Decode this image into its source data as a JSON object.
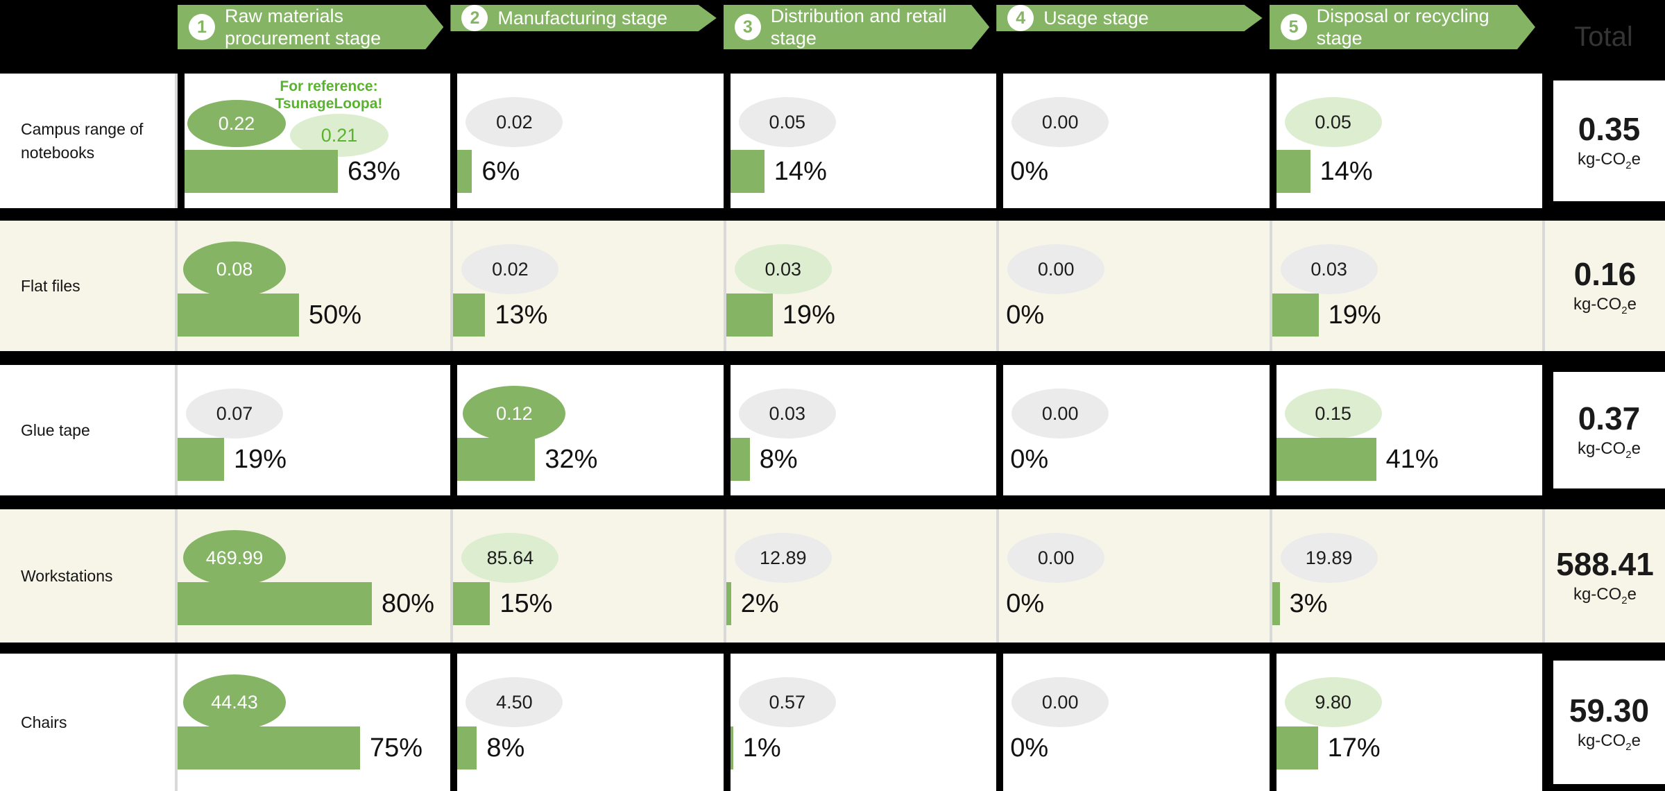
{
  "colors": {
    "green": "#84b464",
    "light_green": "#ddedd0",
    "gray_badge": "#ebebeb",
    "cream_row": "#f7f5e8",
    "annotation_green": "#5ab32e",
    "background": "#000000"
  },
  "header": {
    "total_label": "Total",
    "stages": [
      {
        "number": "1",
        "label": "Raw materials procurement stage"
      },
      {
        "number": "2",
        "label": "Manufacturing stage"
      },
      {
        "number": "3",
        "label": "Distribution and retail stage"
      },
      {
        "number": "4",
        "label": "Usage stage"
      },
      {
        "number": "5",
        "label": "Disposal or recycling stage"
      }
    ]
  },
  "unit": {
    "prefix": "kg-CO",
    "sub": "2",
    "suffix": "e"
  },
  "rows": [
    {
      "product": "Campus range of notebooks",
      "background": "white",
      "total": "0.35",
      "annotation": {
        "line1": "For reference:",
        "line2": "TsunageLoopa!",
        "value": "0.21"
      },
      "stages": [
        {
          "value": "0.22",
          "pct": 63,
          "pct_label": "63%",
          "badge": "dark-green"
        },
        {
          "value": "0.02",
          "pct": 6,
          "pct_label": "6%",
          "badge": "gray"
        },
        {
          "value": "0.05",
          "pct": 14,
          "pct_label": "14%",
          "badge": "gray"
        },
        {
          "value": "0.00",
          "pct": 0,
          "pct_label": "0%",
          "badge": "gray"
        },
        {
          "value": "0.05",
          "pct": 14,
          "pct_label": "14%",
          "badge": "light-green"
        }
      ]
    },
    {
      "product": "Flat files",
      "background": "cream",
      "total": "0.16",
      "stages": [
        {
          "value": "0.08",
          "pct": 50,
          "pct_label": "50%",
          "badge": "dark-green"
        },
        {
          "value": "0.02",
          "pct": 13,
          "pct_label": "13%",
          "badge": "gray"
        },
        {
          "value": "0.03",
          "pct": 19,
          "pct_label": "19%",
          "badge": "light-green"
        },
        {
          "value": "0.00",
          "pct": 0,
          "pct_label": "0%",
          "badge": "gray"
        },
        {
          "value": "0.03",
          "pct": 19,
          "pct_label": "19%",
          "badge": "gray"
        }
      ]
    },
    {
      "product": "Glue tape",
      "background": "white",
      "total": "0.37",
      "stages": [
        {
          "value": "0.07",
          "pct": 19,
          "pct_label": "19%",
          "badge": "gray"
        },
        {
          "value": "0.12",
          "pct": 32,
          "pct_label": "32%",
          "badge": "dark-green"
        },
        {
          "value": "0.03",
          "pct": 8,
          "pct_label": "8%",
          "badge": "gray"
        },
        {
          "value": "0.00",
          "pct": 0,
          "pct_label": "0%",
          "badge": "gray"
        },
        {
          "value": "0.15",
          "pct": 41,
          "pct_label": "41%",
          "badge": "light-green"
        }
      ]
    },
    {
      "product": "Workstations",
      "background": "cream",
      "total": "588.41",
      "stages": [
        {
          "value": "469.99",
          "pct": 80,
          "pct_label": "80%",
          "badge": "dark-green"
        },
        {
          "value": "85.64",
          "pct": 15,
          "pct_label": "15%",
          "badge": "light-green"
        },
        {
          "value": "12.89",
          "pct": 2,
          "pct_label": "2%",
          "badge": "gray"
        },
        {
          "value": "0.00",
          "pct": 0,
          "pct_label": "0%",
          "badge": "gray"
        },
        {
          "value": "19.89",
          "pct": 3,
          "pct_label": "3%",
          "badge": "gray"
        }
      ]
    },
    {
      "product": "Chairs",
      "background": "white",
      "total": "59.30",
      "stages": [
        {
          "value": "44.43",
          "pct": 75,
          "pct_label": "75%",
          "badge": "dark-green"
        },
        {
          "value": "4.50",
          "pct": 8,
          "pct_label": "8%",
          "badge": "gray"
        },
        {
          "value": "0.57",
          "pct": 1,
          "pct_label": "1%",
          "badge": "gray"
        },
        {
          "value": "0.00",
          "pct": 0,
          "pct_label": "0%",
          "badge": "gray"
        },
        {
          "value": "9.80",
          "pct": 17,
          "pct_label": "17%",
          "badge": "light-green"
        }
      ]
    }
  ],
  "chart_data": {
    "type": "table",
    "title": "Product lifecycle CO2 emissions by stage",
    "unit": "kg-CO2e",
    "categories": [
      "Raw materials procurement stage",
      "Manufacturing stage",
      "Distribution and retail stage",
      "Usage stage",
      "Disposal or recycling stage"
    ],
    "series": [
      {
        "name": "Campus range of notebooks",
        "values": [
          0.22,
          0.02,
          0.05,
          0.0,
          0.05
        ],
        "percentages": [
          63,
          6,
          14,
          0,
          14
        ],
        "total": 0.35,
        "reference": {
          "label": "For reference: TsunageLoopa!",
          "value": 0.21
        }
      },
      {
        "name": "Flat files",
        "values": [
          0.08,
          0.02,
          0.03,
          0.0,
          0.03
        ],
        "percentages": [
          50,
          13,
          19,
          0,
          19
        ],
        "total": 0.16
      },
      {
        "name": "Glue tape",
        "values": [
          0.07,
          0.12,
          0.03,
          0.0,
          0.15
        ],
        "percentages": [
          19,
          32,
          8,
          0,
          41
        ],
        "total": 0.37
      },
      {
        "name": "Workstations",
        "values": [
          469.99,
          85.64,
          12.89,
          0.0,
          19.89
        ],
        "percentages": [
          80,
          15,
          2,
          0,
          3
        ],
        "total": 588.41
      },
      {
        "name": "Chairs",
        "values": [
          44.43,
          4.5,
          0.57,
          0.0,
          9.8
        ],
        "percentages": [
          75,
          8,
          1,
          0,
          17
        ],
        "total": 59.3
      }
    ]
  }
}
